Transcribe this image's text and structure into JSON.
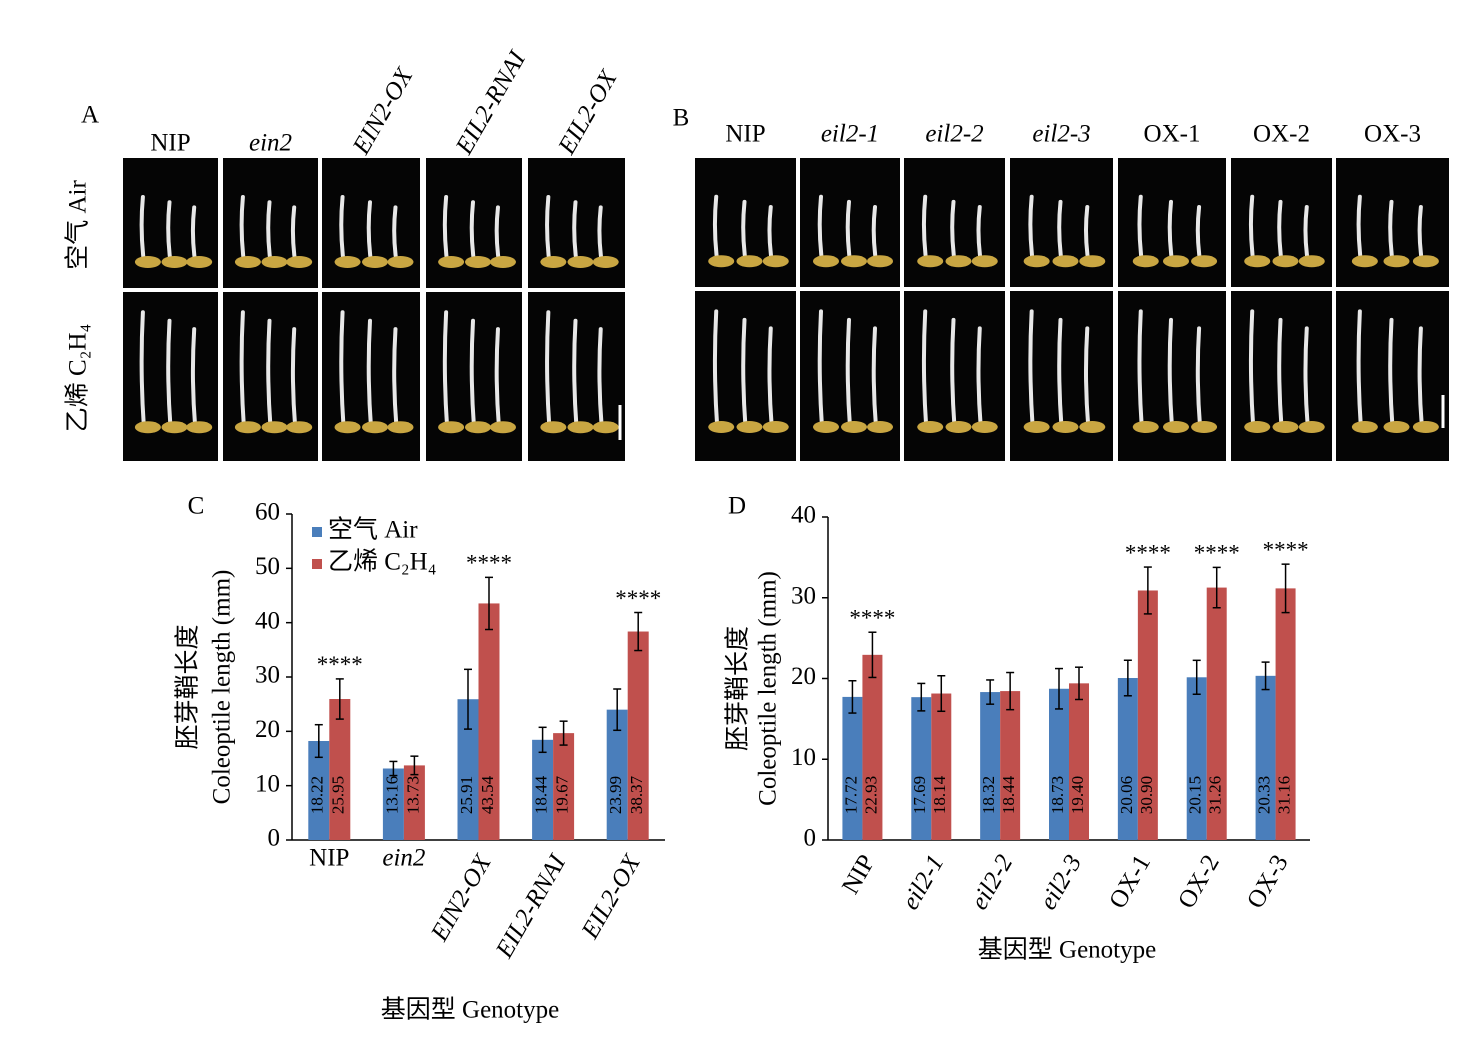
{
  "panel_A": {
    "label": "A",
    "columns": [
      "NIP",
      "ein2",
      "EIN2-OX",
      "EIL2-RNAI",
      "EIL2-OX"
    ],
    "italic_columns": [
      false,
      true,
      true,
      true,
      true
    ],
    "rows": [
      "空气 Air",
      "乙烯 C₂H₄"
    ]
  },
  "panel_B": {
    "label": "B",
    "columns": [
      "NIP",
      "eil2-1",
      "eil2-2",
      "eil2-3",
      "OX-1",
      "OX-2",
      "OX-3"
    ],
    "italic_columns": [
      false,
      true,
      true,
      true,
      false,
      false,
      false
    ]
  },
  "chart_data": [
    {
      "type": "bar",
      "panel_label": "C",
      "ylabel": [
        "胚芽鞘长度",
        "Coleoptile length (mm)"
      ],
      "xlabel": "基因型 Genotype",
      "categories": [
        "NIP",
        "ein2",
        "EIN2-OX",
        "EIL2-RNAI",
        "EIL2-OX"
      ],
      "italic_categories": [
        false,
        true,
        true,
        true,
        true
      ],
      "series": [
        {
          "name": "空气 Air",
          "color": "#4a7ebb",
          "values": [
            18.22,
            13.16,
            25.91,
            18.44,
            23.99
          ],
          "errors": [
            3.0,
            1.3,
            5.5,
            2.3,
            3.8
          ]
        },
        {
          "name": "乙烯 C₂H₄",
          "color": "#c0504d",
          "values": [
            25.95,
            13.73,
            43.54,
            19.67,
            38.37
          ],
          "errors": [
            3.7,
            1.7,
            4.8,
            2.2,
            3.5
          ],
          "significance": [
            "****",
            null,
            "****",
            null,
            "****"
          ]
        }
      ],
      "ylim": [
        0,
        60
      ],
      "yticks": [
        0,
        10,
        20,
        30,
        40,
        50,
        60
      ],
      "legend": "upper left"
    },
    {
      "type": "bar",
      "panel_label": "D",
      "ylabel": [
        "胚芽鞘长度",
        "Coleoptile length (mm)"
      ],
      "xlabel": "基因型 Genotype",
      "categories": [
        "NIP",
        "eil2-1",
        "eil2-2",
        "eil2-3",
        "OX-1",
        "OX-2",
        "OX-3"
      ],
      "italic_categories": [
        false,
        true,
        true,
        true,
        false,
        false,
        false
      ],
      "series": [
        {
          "color": "#4a7ebb",
          "values": [
            17.72,
            17.69,
            18.32,
            18.73,
            20.06,
            20.15,
            20.33
          ],
          "errors": [
            2.0,
            1.7,
            1.5,
            2.5,
            2.2,
            2.1,
            1.7
          ]
        },
        {
          "color": "#c0504d",
          "values": [
            22.93,
            18.14,
            18.44,
            19.4,
            30.9,
            31.26,
            31.16
          ],
          "value_labels": [
            "22.93",
            "18.14",
            "18.44",
            "19.40",
            "30.90",
            "31.26",
            "31.16"
          ],
          "errors": [
            2.8,
            2.2,
            2.3,
            2.0,
            2.9,
            2.5,
            3.0
          ],
          "significance": [
            "****",
            null,
            null,
            null,
            "****",
            "****",
            "****"
          ]
        }
      ],
      "ylim": [
        0,
        40
      ],
      "yticks": [
        0,
        10,
        20,
        30,
        40
      ]
    }
  ]
}
